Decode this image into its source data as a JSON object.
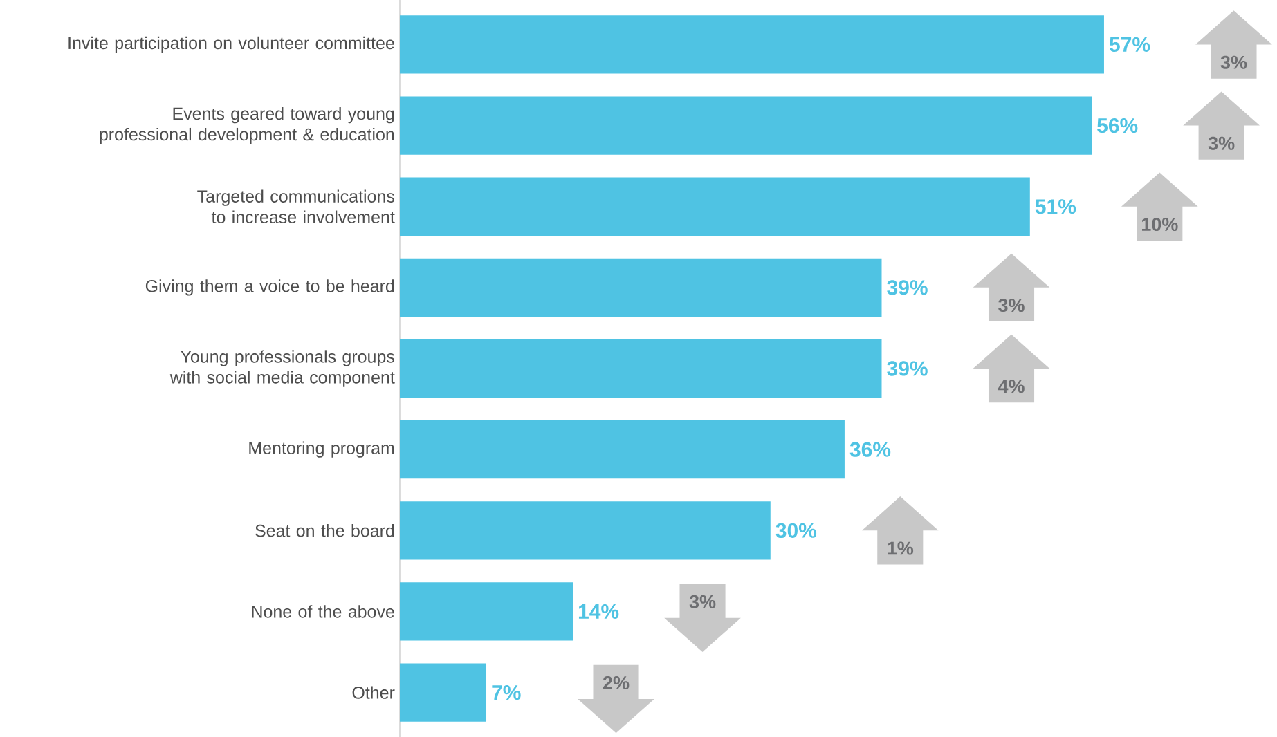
{
  "chart_data": {
    "type": "bar",
    "orientation": "horizontal",
    "color": "#4fc3e3",
    "data_labels": true,
    "categories": [
      "Invite participation on volunteer committee",
      "Events geared toward young professional development & education",
      "Targeted communications to increase involvement",
      "Giving them a voice to be heard",
      "Young professionals groups with social media component",
      "Mentoring program",
      "Seat on the board",
      "None of the above",
      "Other"
    ],
    "values": [
      57,
      56,
      51,
      39,
      39,
      36,
      30,
      14,
      7
    ],
    "value_labels": [
      "57%",
      "56%",
      "51%",
      "39%",
      "39%",
      "36%",
      "30%",
      "14%",
      "7%"
    ],
    "annotations": [
      "3%",
      "3%",
      "10%",
      "3%",
      "4%",
      "1%",
      "3%",
      "2%"
    ]
  }
}
